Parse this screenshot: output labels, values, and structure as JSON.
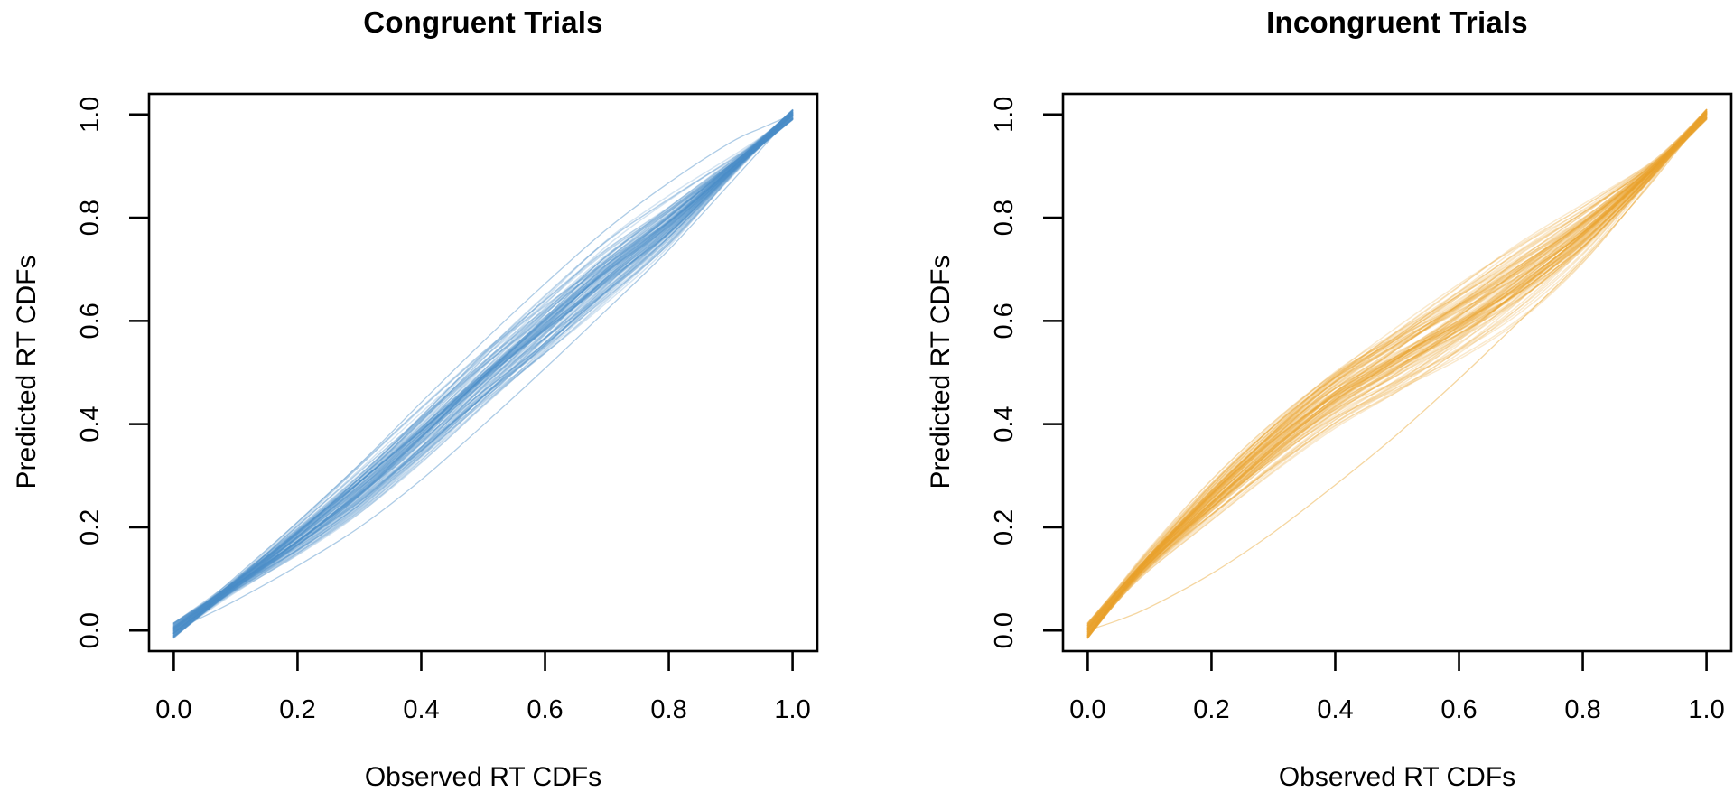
{
  "figure": {
    "background_color": "#ffffff",
    "axis_color": "#000000",
    "text_color": "#000000"
  },
  "chart_data": [
    {
      "type": "line",
      "panel": "left",
      "title": "Congruent Trials",
      "xlabel": "Observed RT CDFs",
      "ylabel": "Predicted RT CDFs",
      "xlim": [
        0,
        1
      ],
      "ylim": [
        0,
        1
      ],
      "axis_padding_fraction": 0.04,
      "tick_values": [
        0.0,
        0.2,
        0.4,
        0.6,
        0.8,
        1.0
      ],
      "tick_labels": [
        "0.0",
        "0.2",
        "0.4",
        "0.6",
        "0.8",
        "1.0"
      ],
      "grid": false,
      "legend": null,
      "line_color": "#4b8dc8",
      "line_opacity": 0.24,
      "line_width": 1.5,
      "n_curves": 100,
      "seed": 11,
      "x_anchors": [
        0,
        0.05,
        0.1,
        0.2,
        0.3,
        0.4,
        0.5,
        0.6,
        0.7,
        0.8,
        0.9,
        0.95,
        1
      ],
      "band_center": [
        0,
        0.045,
        0.09,
        0.18,
        0.276,
        0.382,
        0.492,
        0.595,
        0.698,
        0.792,
        0.896,
        0.948,
        1
      ],
      "band_halfwidth": [
        0.012,
        0.018,
        0.026,
        0.04,
        0.048,
        0.052,
        0.056,
        0.062,
        0.068,
        0.066,
        0.044,
        0.026,
        0.01
      ],
      "outlier_curves": [
        [
          0,
          0.028,
          0.058,
          0.125,
          0.2,
          0.292,
          0.398,
          0.508,
          0.622,
          0.738,
          0.868,
          0.934,
          1
        ],
        [
          0,
          0.052,
          0.104,
          0.21,
          0.322,
          0.442,
          0.56,
          0.672,
          0.778,
          0.868,
          0.946,
          0.974,
          1
        ]
      ]
    },
    {
      "type": "line",
      "panel": "right",
      "title": "Incongruent Trials",
      "xlabel": "Observed RT CDFs",
      "ylabel": "Predicted RT CDFs",
      "xlim": [
        0,
        1
      ],
      "ylim": [
        0,
        1
      ],
      "axis_padding_fraction": 0.04,
      "tick_values": [
        0.0,
        0.2,
        0.4,
        0.6,
        0.8,
        1.0
      ],
      "tick_labels": [
        "0.0",
        "0.2",
        "0.4",
        "0.6",
        "0.8",
        "1.0"
      ],
      "grid": false,
      "legend": null,
      "line_color": "#e9a42c",
      "line_opacity": 0.24,
      "line_width": 1.5,
      "n_curves": 100,
      "seed": 23,
      "x_anchors": [
        0,
        0.05,
        0.1,
        0.2,
        0.3,
        0.4,
        0.5,
        0.6,
        0.7,
        0.8,
        0.9,
        0.95,
        1
      ],
      "band_center": [
        0,
        0.072,
        0.138,
        0.252,
        0.358,
        0.452,
        0.525,
        0.6,
        0.682,
        0.772,
        0.878,
        0.938,
        1
      ],
      "band_halfwidth": [
        0.014,
        0.024,
        0.038,
        0.05,
        0.052,
        0.056,
        0.062,
        0.068,
        0.072,
        0.066,
        0.046,
        0.028,
        0.01
      ],
      "outlier_curves": [
        [
          0,
          0.02,
          0.045,
          0.11,
          0.19,
          0.282,
          0.38,
          0.488,
          0.602,
          0.718,
          0.852,
          0.926,
          1
        ]
      ]
    }
  ]
}
